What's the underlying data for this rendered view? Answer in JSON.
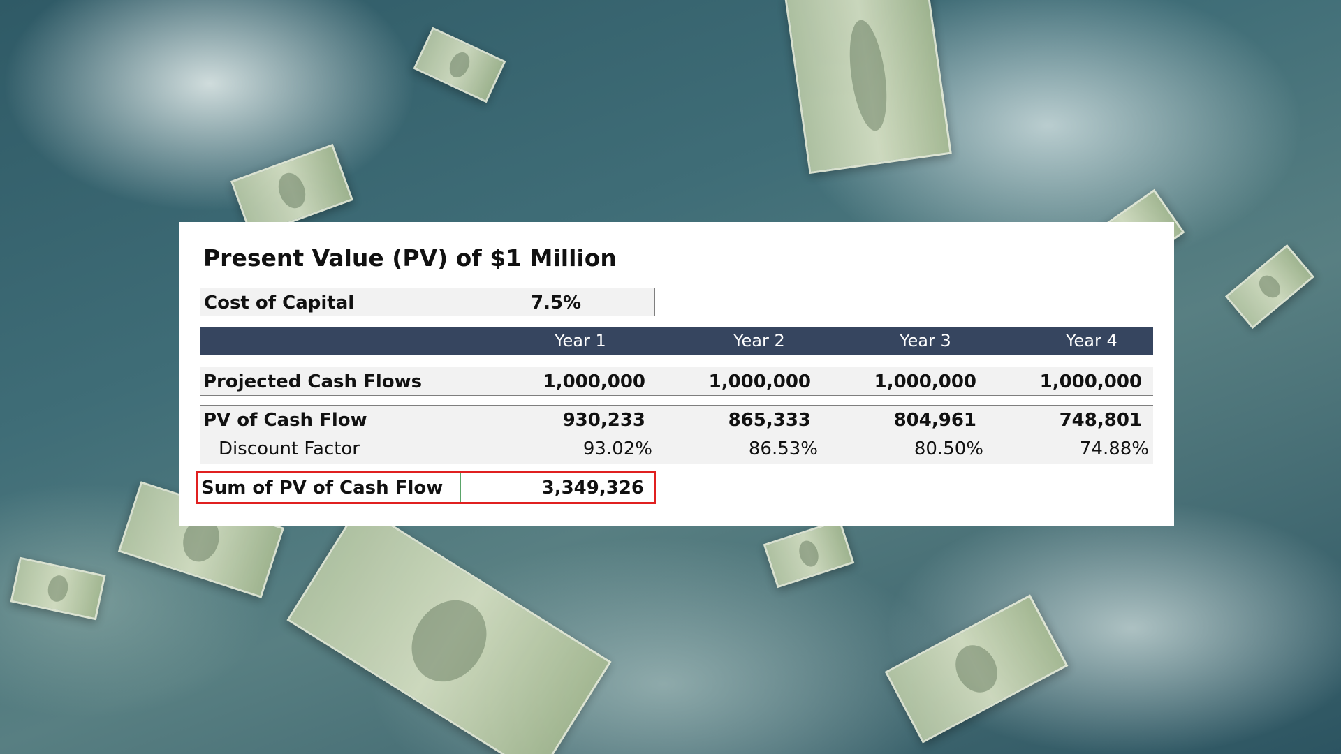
{
  "title": "Present Value (PV) of $1 Million",
  "cost_of_capital": {
    "label": "Cost of Capital",
    "value": "7.5%"
  },
  "headers": [
    "Year 1",
    "Year 2",
    "Year 3",
    "Year 4"
  ],
  "rows": {
    "projected": {
      "label": "Projected Cash Flows",
      "values": [
        "1,000,000",
        "1,000,000",
        "1,000,000",
        "1,000,000"
      ]
    },
    "pv": {
      "label": "PV of Cash Flow",
      "values": [
        "930,233",
        "865,333",
        "804,961",
        "748,801"
      ]
    },
    "discount": {
      "label": "Discount Factor",
      "values": [
        "93.02%",
        "86.53%",
        "80.50%",
        "74.88%"
      ]
    }
  },
  "sum": {
    "label": "Sum of PV of Cash Flow",
    "value": "3,349,326"
  },
  "colors": {
    "header_band": "#36455f",
    "row_fill": "#f2f2f2",
    "highlight_border": "#e02020"
  }
}
